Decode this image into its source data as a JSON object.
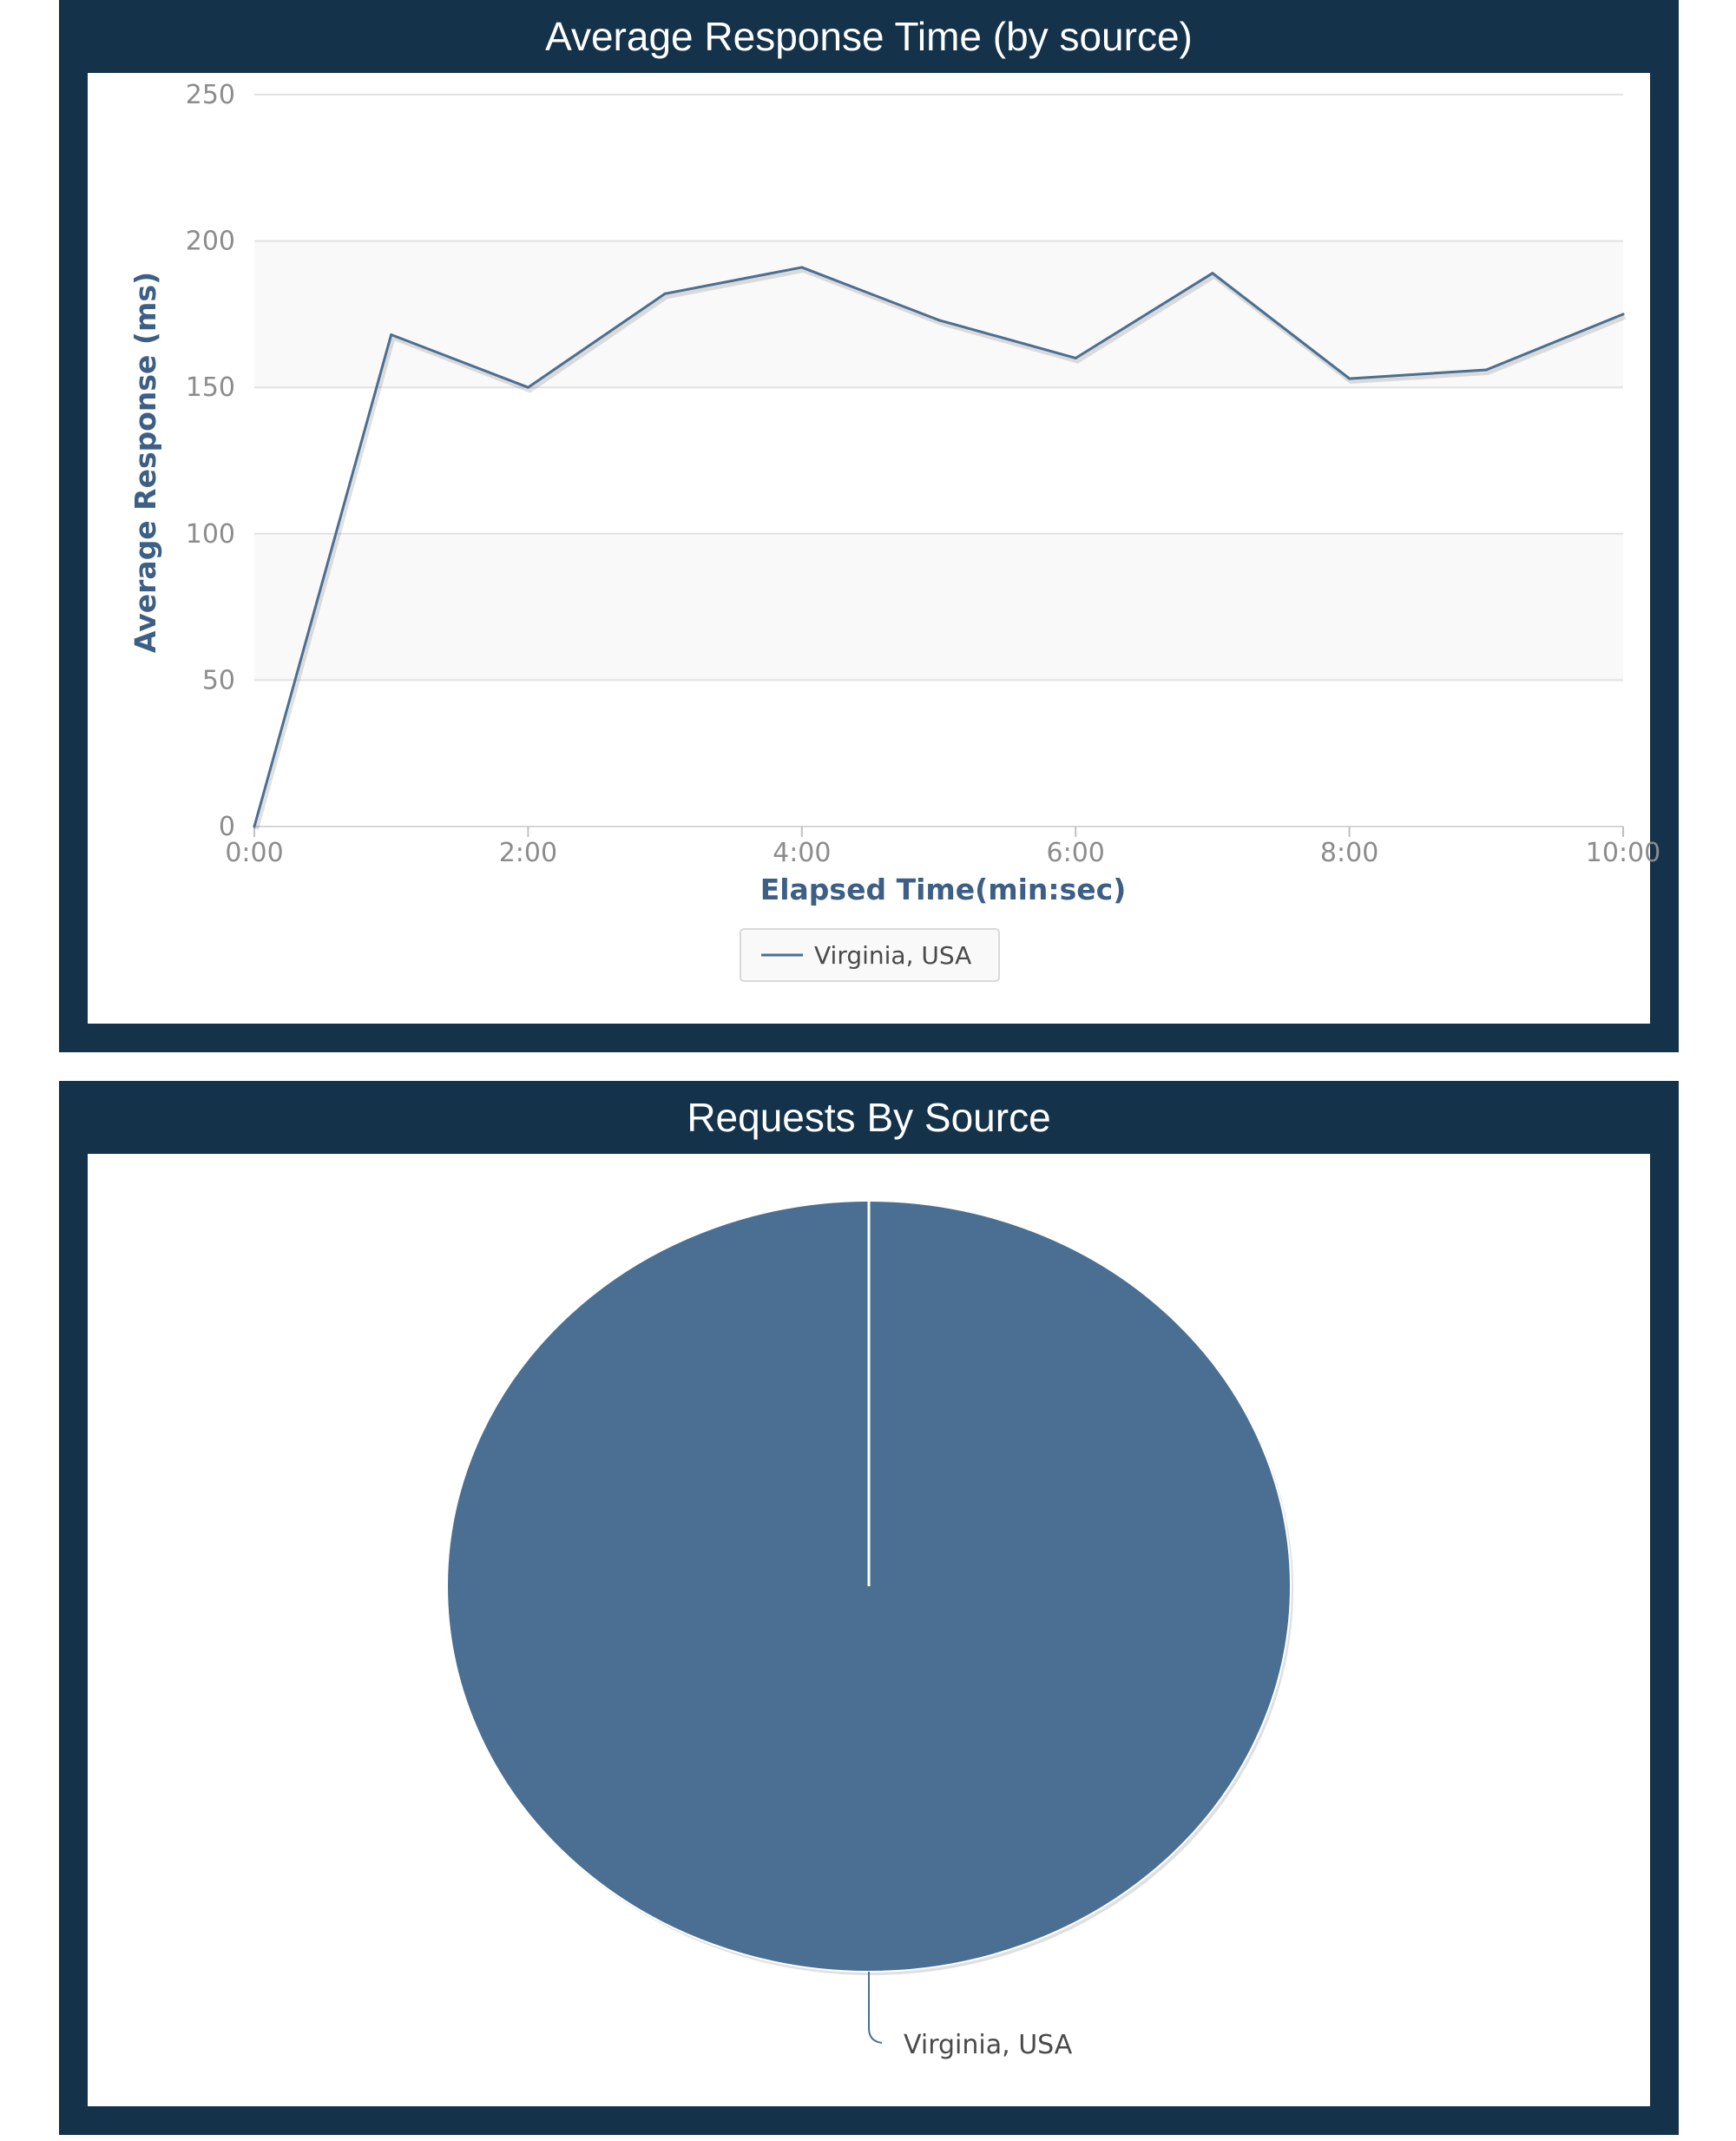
{
  "colors": {
    "panel_bg": "#14324a",
    "series": "#4a6f93",
    "axis_label": "#3d5f85",
    "tick_label": "#8c8c8c",
    "band": "#f9f9f9",
    "grid": "#e2e2e2"
  },
  "chart_data": [
    {
      "type": "line",
      "title": "Average Response Time (by source)",
      "xlabel": "Elapsed Time(min:sec)",
      "ylabel": "Average Response (ms)",
      "x_ticks": [
        "0:00",
        "2:00",
        "4:00",
        "6:00",
        "8:00",
        "10:00"
      ],
      "xlim": [
        0,
        10
      ],
      "y_ticks": [
        "0",
        "50",
        "100",
        "150",
        "200",
        "250"
      ],
      "ylim": [
        0,
        250
      ],
      "grid": true,
      "legend_position": "bottom-center",
      "x": [
        0,
        1,
        2,
        3,
        4,
        5,
        6,
        7,
        8,
        9,
        10
      ],
      "series": [
        {
          "name": "Virginia, USA",
          "values": [
            0,
            168,
            150,
            182,
            191,
            173,
            160,
            189,
            153,
            156,
            175
          ]
        }
      ]
    },
    {
      "type": "pie",
      "title": "Requests By Source",
      "slices": [
        {
          "label": "Virginia, USA",
          "value": 100
        }
      ]
    }
  ]
}
